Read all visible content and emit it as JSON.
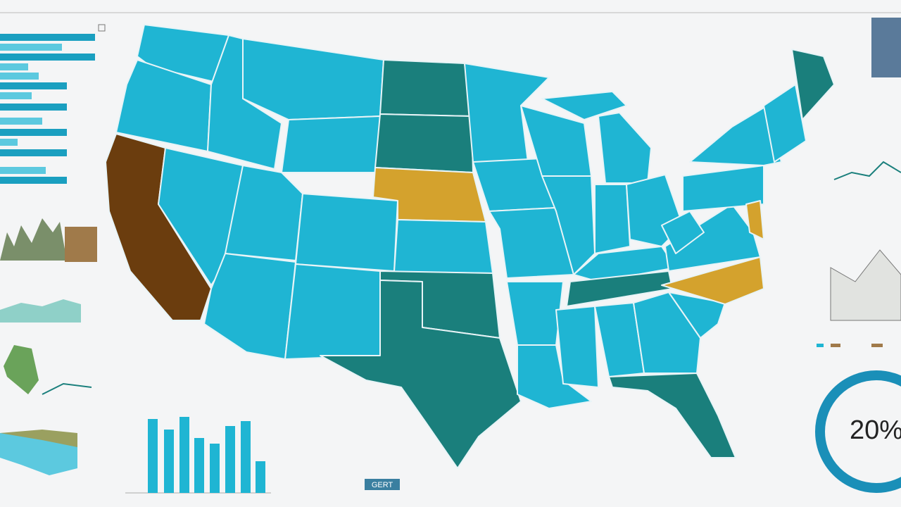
{
  "donut": {
    "label": "20%"
  },
  "button": {
    "label": "GERT"
  }
}
